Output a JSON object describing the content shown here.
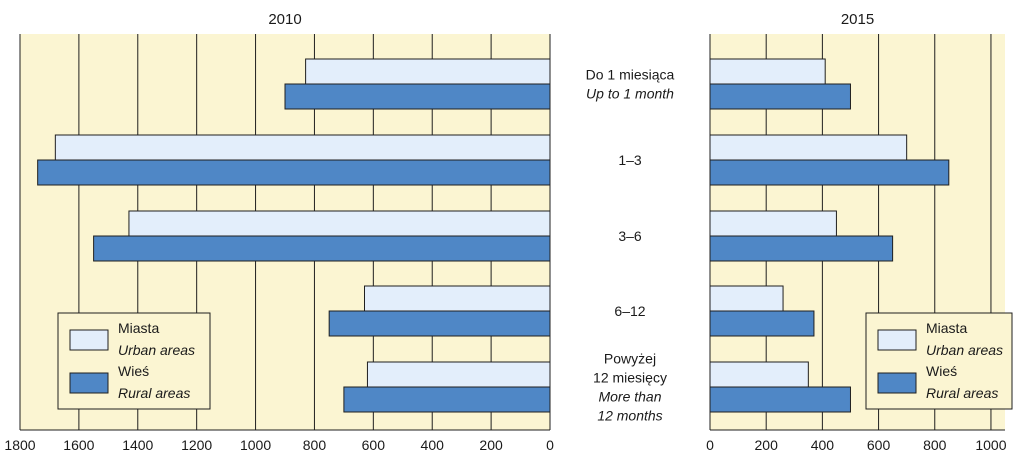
{
  "colors": {
    "plot_bg": "#fbf5d2",
    "urban": "#e3eefb",
    "rural": "#4f87c6",
    "outline": "#1f1f1f",
    "grid": "#1f1f1f"
  },
  "chart_data": [
    {
      "type": "bar",
      "orientation": "horizontal",
      "direction": "right-to-left",
      "title": "2010",
      "xlim": [
        0,
        1800
      ],
      "xticks": [
        1800,
        1600,
        1400,
        1200,
        1000,
        800,
        600,
        400,
        200,
        0
      ],
      "grid": true,
      "legend_position": "bottom-left",
      "legend": [
        {
          "label": "Miasta",
          "label_en": "Urban areas"
        },
        {
          "label": "Wieś",
          "label_en": "Rural areas"
        }
      ],
      "categories": [
        "Do 1 miesiąca",
        "1–3",
        "3–6",
        "6–12",
        "Powyżej 12 miesięcy"
      ],
      "series": [
        {
          "name": "Miasta",
          "values": [
            830,
            1680,
            1430,
            630,
            620
          ]
        },
        {
          "name": "Wieś",
          "values": [
            900,
            1740,
            1550,
            750,
            700
          ]
        }
      ]
    },
    {
      "type": "bar",
      "orientation": "horizontal",
      "direction": "left-to-right",
      "title": "2015",
      "xlim": [
        0,
        1050
      ],
      "xticks": [
        0,
        200,
        400,
        600,
        800,
        1000
      ],
      "grid": true,
      "legend_position": "bottom-right",
      "legend": [
        {
          "label": "Miasta",
          "label_en": "Urban areas"
        },
        {
          "label": "Wieś",
          "label_en": "Rural areas"
        }
      ],
      "categories": [
        "Do 1 miesiąca",
        "1–3",
        "3–6",
        "6–12",
        "Powyżej 12 miesięcy"
      ],
      "series": [
        {
          "name": "Miasta",
          "values": [
            410,
            700,
            450,
            260,
            350
          ]
        },
        {
          "name": "Wieś",
          "values": [
            500,
            850,
            650,
            370,
            500
          ]
        }
      ]
    }
  ],
  "category_labels": [
    {
      "pl": [
        "Do 1 miesiąca"
      ],
      "en": [
        "Up to 1 month"
      ]
    },
    {
      "pl": [
        "1–3"
      ],
      "en": []
    },
    {
      "pl": [
        "3–6"
      ],
      "en": []
    },
    {
      "pl": [
        "6–12"
      ],
      "en": []
    },
    {
      "pl": [
        "Powyżej",
        "12 miesięcy"
      ],
      "en": [
        "More than",
        "12 months"
      ]
    }
  ]
}
